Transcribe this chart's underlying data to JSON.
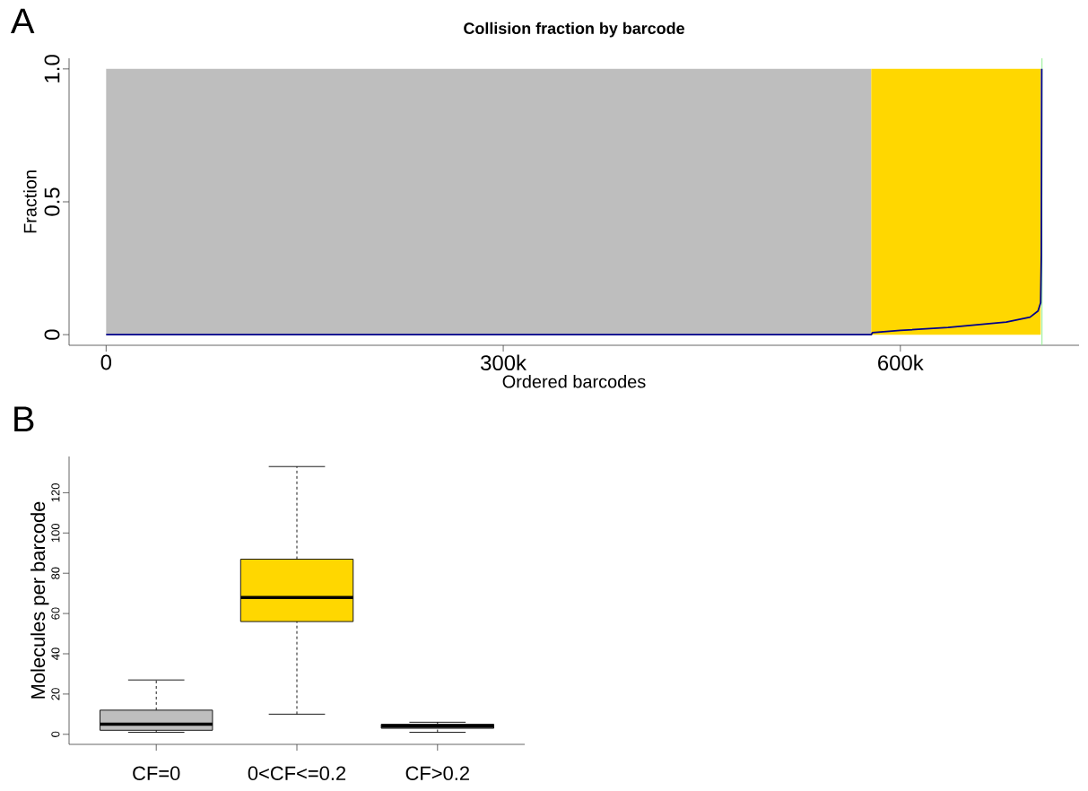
{
  "chart_data": [
    {
      "type": "area",
      "title": "Collision fraction by barcode",
      "xlabel": "Ordered barcodes",
      "ylabel": "Fraction",
      "annotations": [
        "A"
      ],
      "xlim": [
        -28000,
        735000
      ],
      "ylim": [
        -0.04,
        1.04
      ],
      "xticks": [
        0,
        {
          "value": 300000,
          "label": "300k"
        },
        {
          "value": 600000,
          "label": "600k"
        }
      ],
      "yticks": [
        0,
        0.5,
        {
          "value": 1,
          "label": "1.0"
        }
      ],
      "series": [
        {
          "type": "area",
          "color": "#bebebe",
          "x": [
            0,
            578000
          ],
          "values": [
            1,
            1
          ]
        },
        {
          "type": "area",
          "color": "#ffd700",
          "x": [
            578000,
            706000
          ],
          "values": [
            1,
            1
          ]
        },
        {
          "type": "line",
          "color": "#00008b",
          "x": [
            0,
            578000,
            579000,
            600000,
            636000,
            680000,
            698000,
            704000,
            706000,
            706500,
            706800
          ],
          "values": [
            0,
            0,
            0.008,
            0.016,
            0.027,
            0.047,
            0.066,
            0.089,
            0.12,
            0.3,
            1.0
          ]
        }
      ],
      "ref_lines": [
        {
          "axis": "x",
          "value": 707000,
          "color": "#90ee90"
        }
      ]
    },
    {
      "type": "box",
      "ylabel": "Molecules per barcode",
      "annotations": [
        "B"
      ],
      "categories": [
        "CF=0",
        "0<CF<=0.2",
        "CF>0.2"
      ],
      "colors": [
        "#bebebe",
        "#ffd700",
        "#bebebe"
      ],
      "boxes": [
        {
          "low": 1,
          "q1": 2,
          "median": 5,
          "q3": 12,
          "high": 27
        },
        {
          "low": 10,
          "q1": 56,
          "median": 68,
          "q3": 87,
          "high": 133
        },
        {
          "low": 1,
          "q1": 3,
          "median": 4,
          "q3": 5,
          "high": 6
        }
      ],
      "ylim": [
        -5,
        138
      ],
      "yticks": [
        0,
        20,
        40,
        60,
        80,
        100,
        120
      ]
    }
  ]
}
